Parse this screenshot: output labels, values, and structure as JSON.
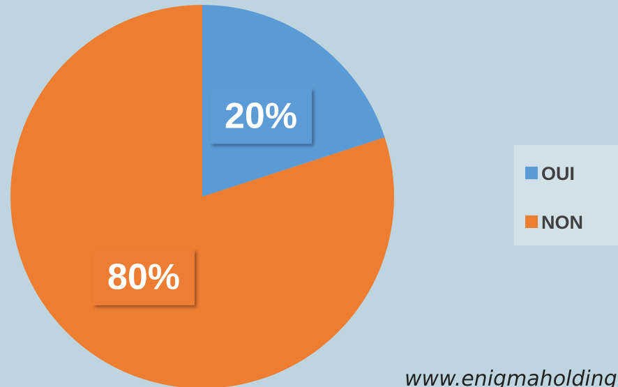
{
  "chart_data": {
    "type": "pie",
    "categories": [
      "OUI",
      "NON"
    ],
    "values": [
      20,
      80
    ],
    "value_labels": [
      "20%",
      "80%"
    ],
    "colors": [
      "#5b9bd5",
      "#ed7d31"
    ],
    "legend": "right",
    "annotation": "www.enigmaholding.net"
  }
}
